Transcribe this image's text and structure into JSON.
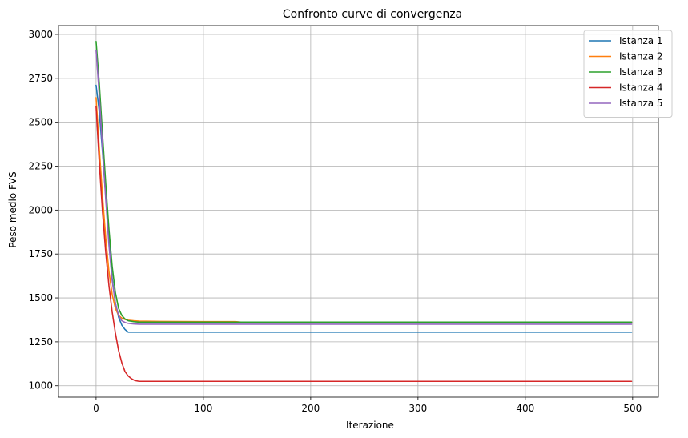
{
  "chart_data": {
    "type": "line",
    "title": "Confronto curve di convergenza",
    "xlabel": "Iterazione",
    "ylabel": "Peso medio FVS",
    "xlim": [
      -35,
      524
    ],
    "ylim": [
      935,
      3050
    ],
    "xticks": [
      0,
      100,
      200,
      300,
      400,
      500
    ],
    "yticks": [
      1000,
      1250,
      1500,
      1750,
      2000,
      2250,
      2500,
      2750,
      3000
    ],
    "grid": true,
    "legend_position": "top-right",
    "series": [
      {
        "name": "Istanza 1",
        "color": "#1f77b4",
        "x": [
          0,
          3,
          6,
          9,
          12,
          15,
          18,
          21,
          24,
          27,
          30,
          35,
          40,
          60,
          100,
          200,
          300,
          400,
          499
        ],
        "y": [
          2710,
          2560,
          2330,
          2080,
          1830,
          1610,
          1470,
          1390,
          1345,
          1320,
          1305,
          1305,
          1305,
          1305,
          1305,
          1305,
          1305,
          1305,
          1305
        ]
      },
      {
        "name": "Istanza 2",
        "color": "#ff7f0e",
        "x": [
          0,
          3,
          6,
          9,
          12,
          15,
          18,
          21,
          24,
          27,
          30,
          35,
          40,
          60,
          100,
          130,
          135,
          200,
          300,
          400,
          499
        ],
        "y": [
          2640,
          2350,
          2080,
          1840,
          1650,
          1520,
          1440,
          1400,
          1385,
          1377,
          1373,
          1370,
          1368,
          1366,
          1365,
          1365,
          1362,
          1362,
          1362,
          1362,
          1362
        ]
      },
      {
        "name": "Istanza 3",
        "color": "#2ca02c",
        "x": [
          0,
          3,
          6,
          9,
          12,
          15,
          18,
          21,
          24,
          27,
          30,
          35,
          40,
          60,
          100,
          200,
          300,
          400,
          499
        ],
        "y": [
          2960,
          2720,
          2430,
          2150,
          1890,
          1680,
          1530,
          1440,
          1400,
          1380,
          1370,
          1365,
          1362,
          1362,
          1362,
          1362,
          1362,
          1362,
          1362
        ]
      },
      {
        "name": "Istanza 4",
        "color": "#d62728",
        "x": [
          0,
          3,
          6,
          9,
          12,
          15,
          18,
          21,
          24,
          27,
          30,
          33,
          36,
          40,
          45,
          60,
          100,
          200,
          300,
          400,
          499
        ],
        "y": [
          2590,
          2270,
          1990,
          1760,
          1570,
          1420,
          1300,
          1200,
          1130,
          1080,
          1055,
          1040,
          1030,
          1025,
          1025,
          1025,
          1025,
          1025,
          1025,
          1025,
          1025
        ]
      },
      {
        "name": "Istanza 5",
        "color": "#9467bd",
        "x": [
          0,
          3,
          6,
          9,
          12,
          15,
          18,
          21,
          24,
          27,
          30,
          35,
          40,
          50,
          60,
          100,
          200,
          300,
          400,
          499
        ],
        "y": [
          2910,
          2650,
          2350,
          2060,
          1800,
          1600,
          1470,
          1400,
          1370,
          1360,
          1355,
          1352,
          1350,
          1350,
          1350,
          1350,
          1350,
          1350,
          1350,
          1350
        ]
      }
    ]
  }
}
